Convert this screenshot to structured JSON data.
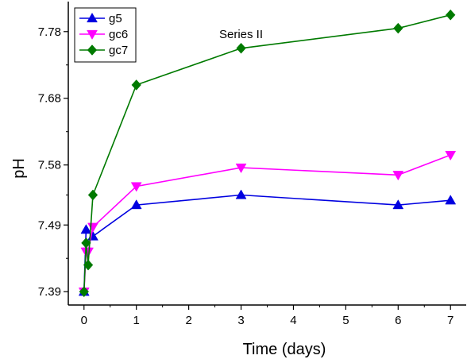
{
  "chart_data": {
    "type": "line",
    "annotation": "Series II",
    "xlabel": "Time (days)",
    "ylabel": "pH",
    "xlim": [
      -0.3,
      7.3
    ],
    "ylim": [
      7.37,
      7.825
    ],
    "xticks": [
      0,
      1,
      2,
      3,
      4,
      5,
      6,
      7
    ],
    "yticks": [
      7.39,
      7.49,
      7.58,
      7.68,
      7.78
    ],
    "ytick_labels": [
      "7.39",
      "7.49",
      "7.58",
      "7.68",
      "7.78"
    ],
    "legend_position": "top-left",
    "grid": false,
    "series": [
      {
        "name": "g5",
        "color": "#0000e0",
        "marker": "triangle-up",
        "x": [
          0,
          0.04,
          0.17,
          1,
          3,
          6,
          7
        ],
        "y": [
          7.39,
          7.483,
          7.473,
          7.52,
          7.535,
          7.52,
          7.527
        ]
      },
      {
        "name": "gc6",
        "color": "#ff00ff",
        "marker": "triangle-down",
        "x": [
          0,
          0.04,
          0.08,
          0.17,
          1,
          3,
          6,
          7
        ],
        "y": [
          7.39,
          7.45,
          7.45,
          7.487,
          7.548,
          7.576,
          7.565,
          7.595
        ]
      },
      {
        "name": "gc7",
        "color": "#007a00",
        "marker": "diamond",
        "x": [
          0,
          0.04,
          0.08,
          0.17,
          1,
          3,
          6,
          7
        ],
        "y": [
          7.39,
          7.463,
          7.43,
          7.535,
          7.7,
          7.755,
          7.785,
          7.805
        ]
      }
    ]
  }
}
